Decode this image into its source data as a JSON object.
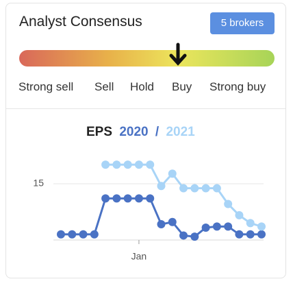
{
  "header": {
    "title": "Analyst Consensus",
    "badge": "5 brokers"
  },
  "consensus": {
    "scale": [
      "Strong sell",
      "Sell",
      "Hold",
      "Buy",
      "Strong buy"
    ]
  },
  "chart_data": {
    "type": "line",
    "title": "EPS",
    "title_separator": "/",
    "categories": [
      null,
      null,
      null,
      null,
      null,
      null,
      null,
      "Jan",
      null,
      null,
      null,
      null,
      null,
      null,
      null,
      null,
      null,
      null,
      null
    ],
    "series": [
      {
        "name": "2020",
        "color": "#4a72c4",
        "values": [
          10.5,
          10.5,
          10.5,
          10.5,
          13.7,
          13.7,
          13.7,
          13.7,
          13.7,
          11.4,
          11.6,
          10.4,
          10.3,
          11.1,
          11.2,
          11.2,
          10.5,
          10.5,
          10.5
        ]
      },
      {
        "name": "2021",
        "color": "#a8d4f7",
        "values": [
          null,
          null,
          null,
          null,
          16.7,
          16.7,
          16.7,
          16.7,
          16.7,
          14.8,
          15.9,
          14.6,
          14.6,
          14.6,
          14.6,
          13.2,
          12.2,
          11.5,
          11.2
        ]
      }
    ],
    "ylim": [
      10,
      18
    ],
    "yticks": [
      15
    ],
    "grid": true
  }
}
